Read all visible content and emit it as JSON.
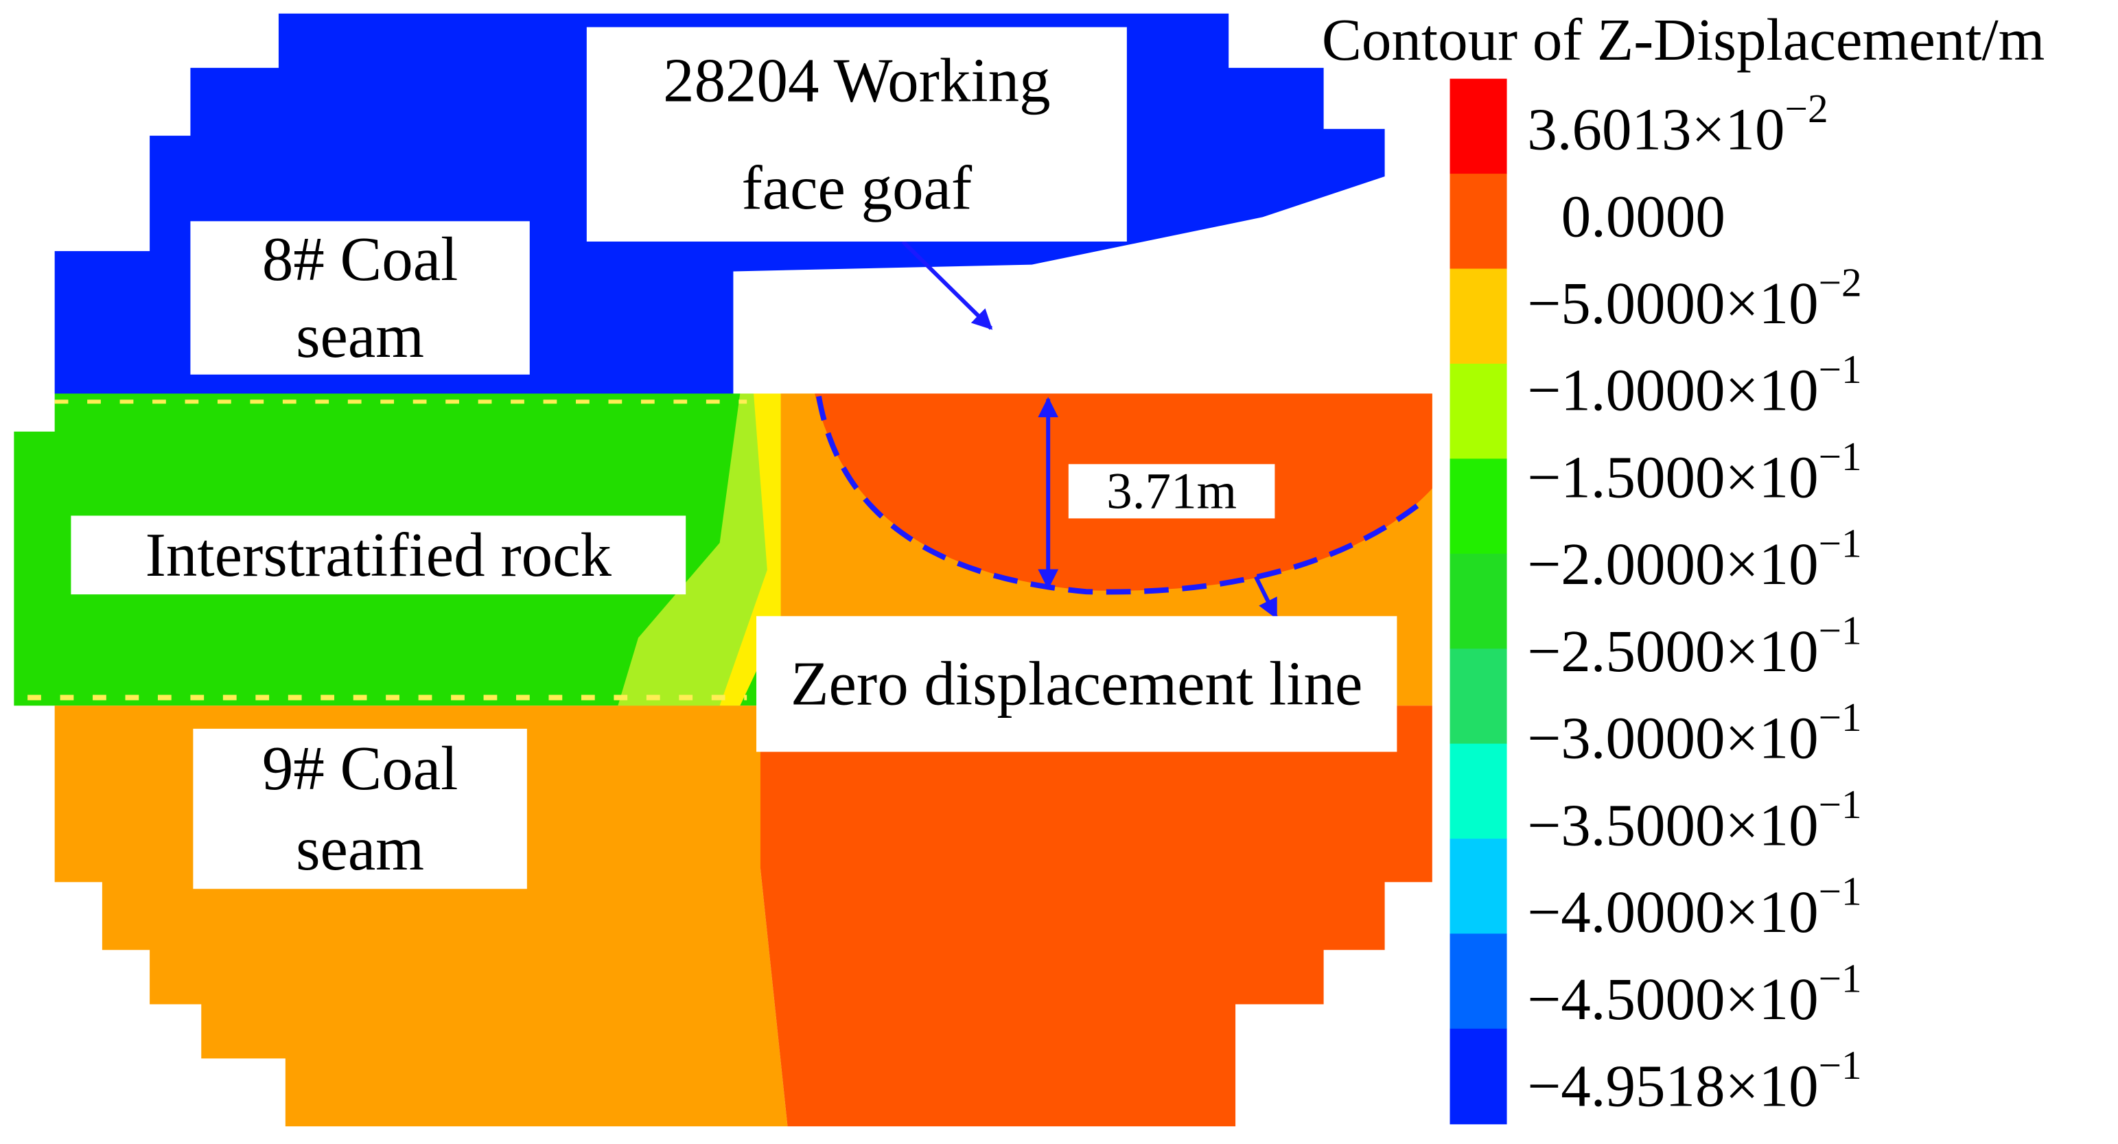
{
  "legend": {
    "title": "Contour of Z-Displacement/m",
    "colors": [
      "#ff0000",
      "#ff5500",
      "#ffcc00",
      "#aaff00",
      "#22ee00",
      "#22dd22",
      "#22dd66",
      "#00ffcc",
      "#00ccff",
      "#0066ff",
      "#0022ff"
    ],
    "levels": [
      {
        "text": "3.6013×10",
        "exponent": "−2"
      },
      {
        "text": "0.0000"
      },
      {
        "text": "−5.0000×10",
        "exponent": "−2"
      },
      {
        "text": "−1.0000×10",
        "exponent": "−1"
      },
      {
        "text": "−1.5000×10",
        "exponent": "−1"
      },
      {
        "text": "−2.0000×10",
        "exponent": "−1"
      },
      {
        "text": "−2.5000×10",
        "exponent": "−1"
      },
      {
        "text": "−3.0000×10",
        "exponent": "−1"
      },
      {
        "text": "−3.5000×10",
        "exponent": "−1"
      },
      {
        "text": "−4.0000×10",
        "exponent": "−1"
      },
      {
        "text": "−4.5000×10",
        "exponent": "−1"
      },
      {
        "text": "−4.9518×10",
        "exponent": "−1"
      }
    ]
  },
  "annotations": {
    "goaf": [
      "28204 Working",
      "face goaf"
    ],
    "coal8": [
      "8# Coal",
      "seam"
    ],
    "rock": [
      "Interstratified rock"
    ],
    "coal9": [
      "9# Coal",
      "seam"
    ],
    "distance": [
      "3.71m"
    ],
    "zero_line": [
      "Zero displacement line"
    ]
  }
}
